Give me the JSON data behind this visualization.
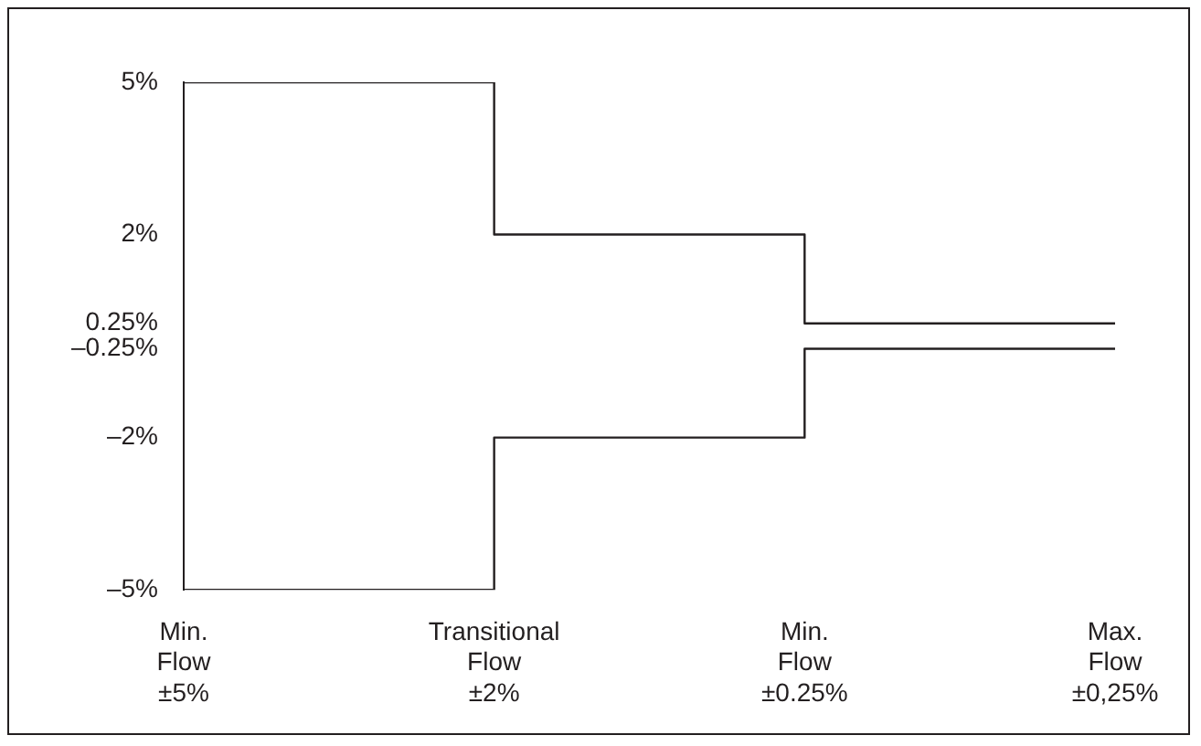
{
  "chart_data": {
    "type": "step",
    "categories": [
      "Min. Flow ±5%",
      "Transitional Flow ±2%",
      "Min. Flow ±0.25%",
      "Max. Flow ±0,25%"
    ],
    "series": [
      {
        "color": "#231f20",
        "values": [
          5,
          2,
          0.25,
          0.25
        ]
      },
      {
        "color": "#231f20",
        "values": [
          -5,
          -2,
          -0.25,
          -0.25
        ]
      }
    ],
    "ylim": [
      -5,
      5
    ],
    "yticks": [
      {
        "value": 5,
        "label": "5%"
      },
      {
        "value": 2,
        "label": "2%"
      },
      {
        "value": 0.25,
        "label": "0.25%"
      },
      {
        "value": -0.25,
        "label": "–0.25%"
      },
      {
        "value": -2,
        "label": "–2%"
      },
      {
        "value": -5,
        "label": "–5%"
      }
    ],
    "grid": false,
    "legend": false
  }
}
